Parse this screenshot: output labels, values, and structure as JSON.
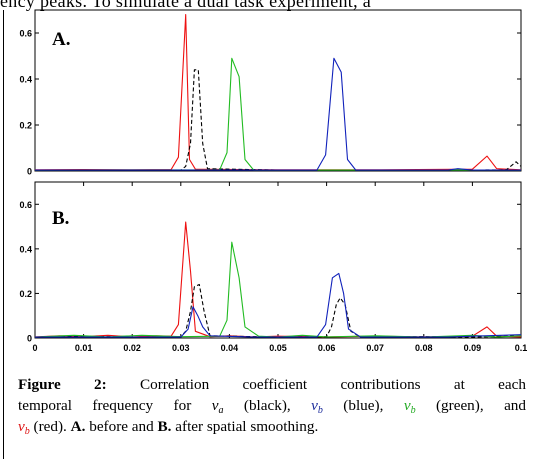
{
  "page": {
    "top_text": "ency peaks. To simulate a dual task experiment, a"
  },
  "chart_data": [
    {
      "type": "line",
      "panel_label": "A.",
      "xlim": [
        0,
        0.1
      ],
      "ylim": [
        0,
        0.7
      ],
      "yticks": [
        0,
        0.2,
        0.4,
        0.6
      ],
      "ytick_labels": [
        "0",
        "0.2",
        "0.4",
        "0.6"
      ],
      "xticks": [],
      "grid": false,
      "series": [
        {
          "color": "#ee1111",
          "dash": false,
          "points": [
            [
              0,
              0.005
            ],
            [
              0.01,
              0.006
            ],
            [
              0.02,
              0.005
            ],
            [
              0.028,
              0.006
            ],
            [
              0.0295,
              0.06
            ],
            [
              0.031,
              0.68
            ],
            [
              0.0318,
              0.05
            ],
            [
              0.033,
              0.008
            ],
            [
              0.05,
              0.005
            ],
            [
              0.07,
              0.005
            ],
            [
              0.09,
              0.008
            ],
            [
              0.093,
              0.065
            ],
            [
              0.095,
              0.01
            ],
            [
              0.1,
              0.005
            ]
          ]
        },
        {
          "color": "#000000",
          "dash": true,
          "points": [
            [
              0,
              0.004
            ],
            [
              0.03,
              0.004
            ],
            [
              0.031,
              0.02
            ],
            [
              0.032,
              0.12
            ],
            [
              0.0328,
              0.44
            ],
            [
              0.0336,
              0.44
            ],
            [
              0.0345,
              0.12
            ],
            [
              0.0355,
              0.01
            ],
            [
              0.05,
              0.004
            ],
            [
              0.09,
              0.004
            ],
            [
              0.097,
              0.005
            ],
            [
              0.099,
              0.04
            ],
            [
              0.1,
              0.02
            ]
          ]
        },
        {
          "color": "#22bb22",
          "dash": false,
          "points": [
            [
              0,
              0.004
            ],
            [
              0.038,
              0.005
            ],
            [
              0.0395,
              0.08
            ],
            [
              0.0405,
              0.49
            ],
            [
              0.042,
              0.41
            ],
            [
              0.0432,
              0.05
            ],
            [
              0.045,
              0.004
            ],
            [
              0.1,
              0.004
            ]
          ]
        },
        {
          "color": "#1122bb",
          "dash": false,
          "points": [
            [
              0,
              0.004
            ],
            [
              0.058,
              0.004
            ],
            [
              0.0598,
              0.07
            ],
            [
              0.0615,
              0.49
            ],
            [
              0.063,
              0.43
            ],
            [
              0.0643,
              0.05
            ],
            [
              0.066,
              0.004
            ],
            [
              0.085,
              0.004
            ],
            [
              0.087,
              0.01
            ],
            [
              0.09,
              0.004
            ],
            [
              0.1,
              0.004
            ]
          ]
        }
      ]
    },
    {
      "type": "line",
      "panel_label": "B.",
      "xlim": [
        0,
        0.1
      ],
      "ylim": [
        0,
        0.7
      ],
      "yticks": [
        0,
        0.2,
        0.4,
        0.6
      ],
      "ytick_labels": [
        "0",
        "0.2",
        "0.4",
        "0.6"
      ],
      "xticks": [
        0,
        0.01,
        0.02,
        0.03,
        0.04,
        0.05,
        0.06,
        0.07,
        0.08,
        0.09,
        0.1
      ],
      "xtick_labels": [
        "0",
        "0.01",
        "0.02",
        "0.03",
        "0.04",
        "0.05",
        "0.06",
        "0.07",
        "0.08",
        "0.09",
        "0.1"
      ],
      "grid": false,
      "series": [
        {
          "color": "#ee1111",
          "dash": false,
          "points": [
            [
              0,
              0.005
            ],
            [
              0.005,
              0.01
            ],
            [
              0.01,
              0.006
            ],
            [
              0.015,
              0.012
            ],
            [
              0.02,
              0.005
            ],
            [
              0.025,
              0.01
            ],
            [
              0.028,
              0.008
            ],
            [
              0.0295,
              0.06
            ],
            [
              0.031,
              0.52
            ],
            [
              0.032,
              0.3
            ],
            [
              0.033,
              0.03
            ],
            [
              0.036,
              0.006
            ],
            [
              0.04,
              0.01
            ],
            [
              0.045,
              0.005
            ],
            [
              0.05,
              0.008
            ],
            [
              0.06,
              0.005
            ],
            [
              0.07,
              0.008
            ],
            [
              0.08,
              0.005
            ],
            [
              0.09,
              0.008
            ],
            [
              0.093,
              0.05
            ],
            [
              0.095,
              0.008
            ],
            [
              0.1,
              0.005
            ]
          ]
        },
        {
          "color": "#000000",
          "dash": true,
          "points": [
            [
              0,
              0.004
            ],
            [
              0.01,
              0.008
            ],
            [
              0.02,
              0.004
            ],
            [
              0.03,
              0.006
            ],
            [
              0.031,
              0.03
            ],
            [
              0.032,
              0.12
            ],
            [
              0.0328,
              0.23
            ],
            [
              0.0338,
              0.24
            ],
            [
              0.0348,
              0.12
            ],
            [
              0.036,
              0.01
            ],
            [
              0.05,
              0.004
            ],
            [
              0.06,
              0.006
            ],
            [
              0.061,
              0.05
            ],
            [
              0.062,
              0.15
            ],
            [
              0.0628,
              0.18
            ],
            [
              0.0638,
              0.15
            ],
            [
              0.065,
              0.03
            ],
            [
              0.067,
              0.004
            ],
            [
              0.08,
              0.006
            ],
            [
              0.09,
              0.004
            ],
            [
              0.1,
              0.01
            ]
          ]
        },
        {
          "color": "#22bb22",
          "dash": false,
          "points": [
            [
              0,
              0.004
            ],
            [
              0.008,
              0.012
            ],
            [
              0.015,
              0.005
            ],
            [
              0.022,
              0.012
            ],
            [
              0.03,
              0.006
            ],
            [
              0.038,
              0.008
            ],
            [
              0.0395,
              0.08
            ],
            [
              0.0405,
              0.43
            ],
            [
              0.042,
              0.27
            ],
            [
              0.0432,
              0.05
            ],
            [
              0.046,
              0.008
            ],
            [
              0.05,
              0.004
            ],
            [
              0.055,
              0.012
            ],
            [
              0.06,
              0.005
            ],
            [
              0.07,
              0.01
            ],
            [
              0.08,
              0.004
            ],
            [
              0.09,
              0.012
            ],
            [
              0.095,
              0.004
            ],
            [
              0.1,
              0.01
            ]
          ]
        },
        {
          "color": "#1122bb",
          "dash": false,
          "points": [
            [
              0,
              0.004
            ],
            [
              0.03,
              0.004
            ],
            [
              0.0315,
              0.04
            ],
            [
              0.0325,
              0.14
            ],
            [
              0.0335,
              0.1
            ],
            [
              0.0345,
              0.05
            ],
            [
              0.036,
              0.01
            ],
            [
              0.045,
              0.004
            ],
            [
              0.058,
              0.004
            ],
            [
              0.0598,
              0.06
            ],
            [
              0.0612,
              0.27
            ],
            [
              0.0625,
              0.29
            ],
            [
              0.0635,
              0.2
            ],
            [
              0.0645,
              0.04
            ],
            [
              0.067,
              0.004
            ],
            [
              0.085,
              0.004
            ],
            [
              0.09,
              0.008
            ],
            [
              0.1,
              0.015
            ]
          ]
        }
      ]
    }
  ],
  "caption": {
    "label": "Figure 2:",
    "line1_text": " Correlation coefficient contributions at each",
    "line2_pre": "temporal frequency for ",
    "va_letter": "v",
    "va_sub": "a",
    "va_desc": " (black), ",
    "vb_letter": "v",
    "vb_sub": "b",
    "vb1_desc": " (blue), ",
    "vb2_desc": " (green), and",
    "vb3_desc": " (red).  ",
    "a_label": "A.",
    "a_text": " before and ",
    "b_label": "B.",
    "b_text": " after spatial smoothing."
  }
}
